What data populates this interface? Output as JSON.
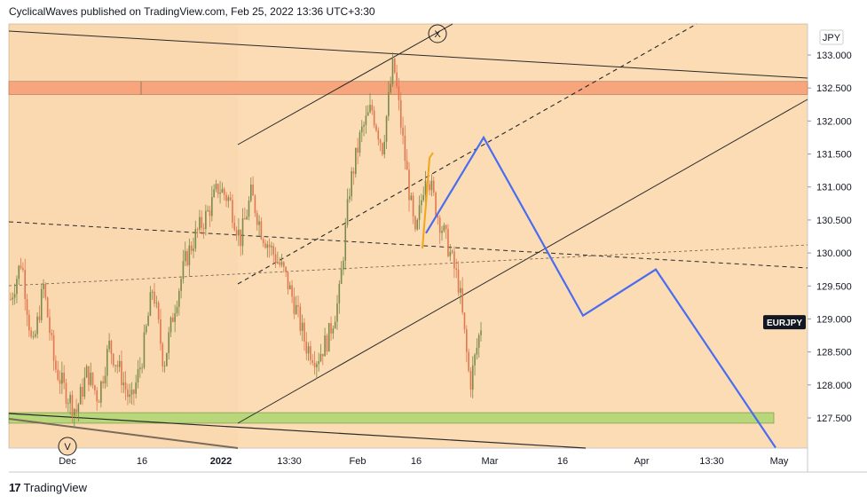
{
  "header": {
    "text": "CyclicalWaves published on TradingView.com, Feb 25, 2022 13:36 UTC+3:30"
  },
  "footer": {
    "brand": "TradingView",
    "logo_glyph": "17"
  },
  "colors": {
    "background": "#fad9b0",
    "lighter_zone": "#fbdcb5",
    "up_candle": "#7a8a4a",
    "down_candle": "#e2764f",
    "projection": "#4a6cf0",
    "resistance_zone": "#f6a57d",
    "support_zone": "#b8d67a",
    "symbol_badge": "#131722",
    "wave_orange": "#f2a619"
  },
  "symbol": {
    "badge": "EURJPY",
    "currency": "JPY"
  },
  "chart_data": {
    "type": "line",
    "title": "",
    "xlabel": "",
    "ylabel": "",
    "ylim": [
      126.9,
      133.3
    ],
    "grid": false,
    "currency_label": "JPY",
    "y_ticks": [
      127.5,
      128.0,
      128.5,
      129.0,
      129.5,
      130.0,
      130.5,
      131.0,
      131.5,
      132.0,
      132.5,
      133.0
    ],
    "y_tick_labels": [
      "127.500",
      "128.000",
      "128.500",
      "129.000",
      "129.500",
      "130.000",
      "130.500",
      "131.000",
      "131.500",
      "132.000",
      "132.500",
      "133.000"
    ],
    "x_tick_labels": [
      "Dec",
      "16",
      "2022",
      "13:30",
      "Feb",
      "16",
      "Mar",
      "16",
      "Apr",
      "13:30",
      "May"
    ],
    "x_tick_bold": [
      false,
      false,
      true,
      false,
      false,
      false,
      false,
      false,
      false,
      false,
      false
    ],
    "last_price_label": "EURJPY",
    "last_price": 128.95,
    "series": [
      {
        "name": "",
        "kind": "candles",
        "description": "EURJPY price path",
        "path_values": [
          129.3,
          129.9,
          128.5,
          129.5,
          128.3,
          127.9,
          127.6,
          128.2,
          127.8,
          128.6,
          128.2,
          127.7,
          128.4,
          129.5,
          128.3,
          129.2,
          129.9,
          130.3,
          130.6,
          131.0,
          130.8,
          130.2,
          130.9,
          130.3,
          130.0,
          129.7,
          129.2,
          128.6,
          128.4,
          128.7,
          129.3,
          131.0,
          131.8,
          132.2,
          131.6,
          132.9,
          131.5,
          130.2,
          131.3,
          130.6,
          130.1,
          129.5,
          128.0,
          128.9
        ]
      },
      {
        "name": "",
        "kind": "projection",
        "dates_labels": [
          "Feb 14",
          "Feb 18",
          "Mar 19",
          "Apr 3",
          "May 2"
        ],
        "values": [
          130.3,
          131.75,
          129.05,
          129.75,
          127.05
        ]
      }
    ],
    "zones": [
      {
        "name": "resistance",
        "from": 132.4,
        "to": 132.6
      },
      {
        "name": "support",
        "from": 127.42,
        "to": 127.58
      }
    ],
    "annotations": [
      {
        "label": "X",
        "at": "Feb peak"
      },
      {
        "label": "V",
        "at": "Dec low"
      }
    ]
  }
}
